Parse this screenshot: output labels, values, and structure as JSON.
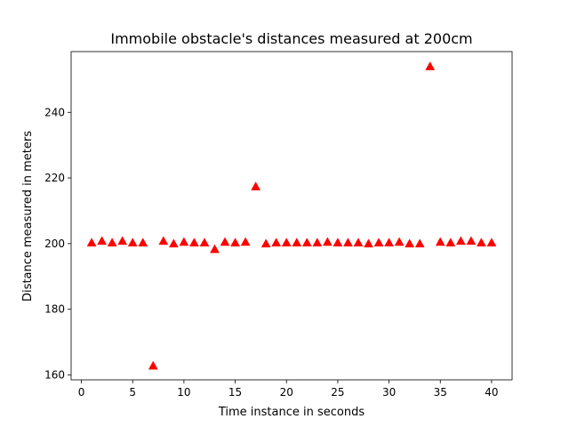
{
  "chart_data": {
    "type": "scatter",
    "title": "Immobile obstacle's distances measured at 200cm",
    "xlabel": "Time instance in seconds",
    "ylabel": "Distance measured in meters",
    "xlim": [
      -1,
      42
    ],
    "ylim": [
      158.5,
      258.5
    ],
    "xticks": [
      0,
      5,
      10,
      15,
      20,
      25,
      30,
      35,
      40
    ],
    "yticks": [
      160,
      180,
      200,
      220,
      240
    ],
    "marker": "triangle-up",
    "marker_color": "#ff0000",
    "grid": false,
    "series": [
      {
        "x": [
          1,
          2,
          3,
          4,
          5,
          6,
          7,
          8,
          9,
          10,
          11,
          12,
          13,
          14,
          15,
          16,
          17,
          18,
          19,
          20,
          21,
          22,
          23,
          24,
          25,
          26,
          27,
          28,
          29,
          30,
          31,
          32,
          33,
          34,
          35,
          36,
          37,
          38,
          39,
          40
        ],
        "y": [
          200.3,
          200.8,
          200.3,
          200.8,
          200.3,
          200.3,
          162.8,
          200.8,
          200.0,
          200.5,
          200.3,
          200.3,
          198.3,
          200.5,
          200.3,
          200.5,
          217.4,
          200.0,
          200.3,
          200.3,
          200.3,
          200.3,
          200.3,
          200.5,
          200.3,
          200.3,
          200.3,
          200.0,
          200.3,
          200.3,
          200.5,
          200.0,
          200.0,
          254.0,
          200.5,
          200.3,
          200.8,
          200.8,
          200.3,
          200.3
        ]
      }
    ]
  }
}
